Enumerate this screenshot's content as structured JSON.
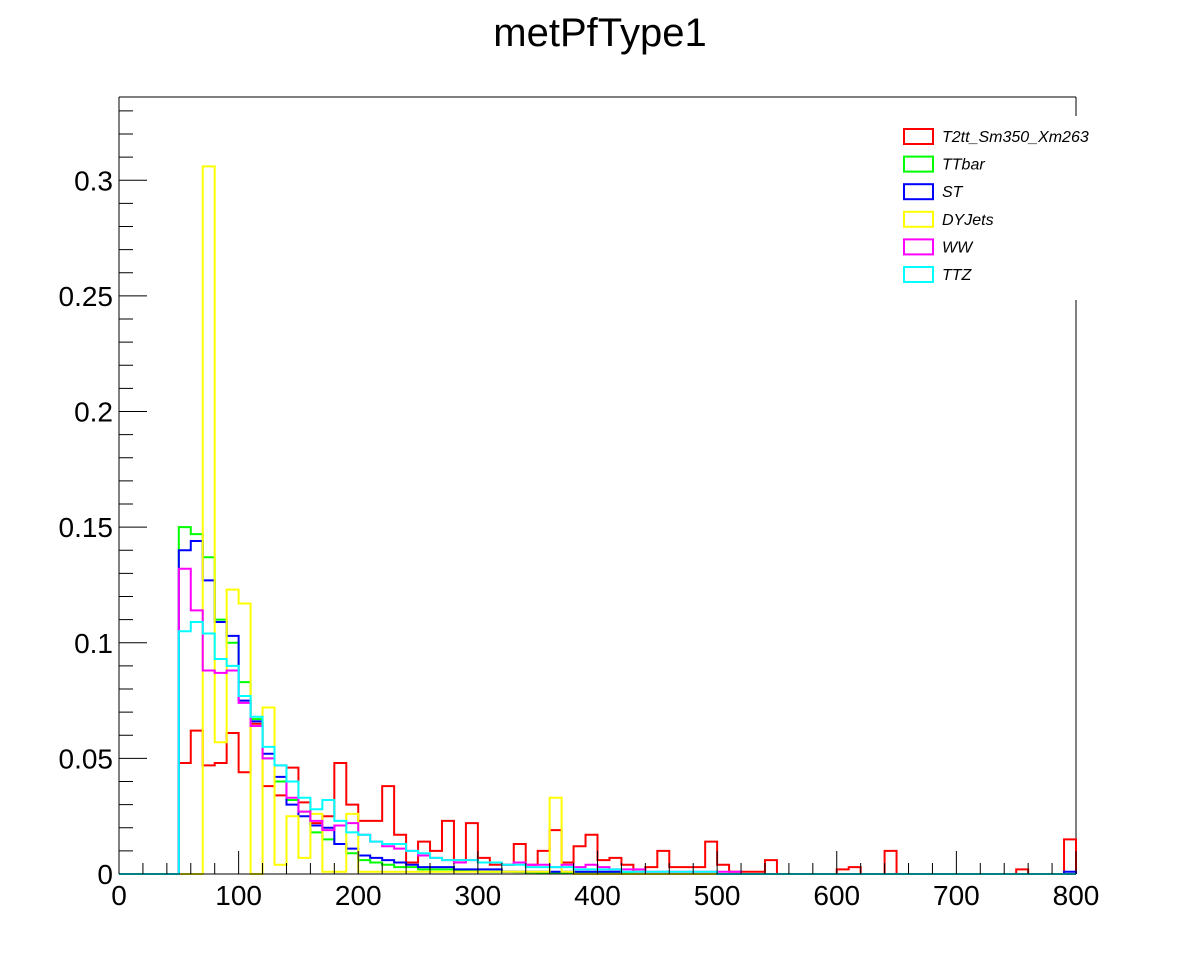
{
  "chart_data": {
    "type": "histogram",
    "title": "metPfType1",
    "xlabel": "",
    "ylabel": "",
    "xlim": [
      0,
      800
    ],
    "ylim": [
      0,
      0.336
    ],
    "x_ticks": [
      "0",
      "100",
      "200",
      "300",
      "400",
      "500",
      "600",
      "700",
      "800"
    ],
    "y_ticks": [
      "0",
      "0.05",
      "0.1",
      "0.15",
      "0.2",
      "0.25",
      "0.3"
    ],
    "y_tick_values": [
      0,
      0.05,
      0.1,
      0.15,
      0.2,
      0.25,
      0.3
    ],
    "bin_width": 10,
    "grid": false,
    "legend_position": "top-right",
    "series": [
      {
        "name": "T2tt_Sm350_Xm263",
        "color": "#ff0000",
        "values": [
          0,
          0,
          0,
          0,
          0,
          0.048,
          0.062,
          0.047,
          0.048,
          0.061,
          0.044,
          0.065,
          0.038,
          0.034,
          0.046,
          0.031,
          0.022,
          0.025,
          0.048,
          0.03,
          0.023,
          0.023,
          0.038,
          0.017,
          0.005,
          0.014,
          0.01,
          0.023,
          0.006,
          0.022,
          0.007,
          0.004,
          0.004,
          0.013,
          0.004,
          0.01,
          0.019,
          0.005,
          0.012,
          0.017,
          0.006,
          0.007,
          0.004,
          0.001,
          0.003,
          0.01,
          0.003,
          0.003,
          0.003,
          0.014,
          0.004,
          0.001,
          0.001,
          0.001,
          0.006,
          0,
          0,
          0,
          0,
          0,
          0.002,
          0.003,
          0,
          0,
          0.01,
          0,
          0,
          0,
          0,
          0,
          0,
          0,
          0,
          0,
          0,
          0.002,
          0,
          0,
          0,
          0.015
        ]
      },
      {
        "name": "TTbar",
        "color": "#00ff00",
        "values": [
          0,
          0,
          0,
          0,
          0,
          0.15,
          0.147,
          0.137,
          0.11,
          0.1,
          0.083,
          0.067,
          0.05,
          0.04,
          0.032,
          0.027,
          0.018,
          0.015,
          0.013,
          0.009,
          0.006,
          0.005,
          0.004,
          0.003,
          0.003,
          0.002,
          0.002,
          0.002,
          0.0015,
          0.0012,
          0.001,
          0.001,
          0.001,
          0.0008,
          0.0007,
          0.0006,
          0.0005,
          0.0004,
          0.0004,
          0.0003,
          0.0003,
          0.0002,
          0.0002,
          0,
          0,
          0,
          0,
          0,
          0,
          0,
          0,
          0,
          0,
          0,
          0,
          0,
          0,
          0,
          0,
          0,
          0,
          0,
          0,
          0,
          0,
          0,
          0,
          0,
          0,
          0,
          0,
          0,
          0,
          0,
          0,
          0,
          0,
          0,
          0,
          0
        ]
      },
      {
        "name": "ST",
        "color": "#0000ff",
        "values": [
          0,
          0,
          0,
          0,
          0,
          0.14,
          0.144,
          0.127,
          0.109,
          0.103,
          0.075,
          0.066,
          0.052,
          0.042,
          0.03,
          0.025,
          0.021,
          0.02,
          0.013,
          0.011,
          0.008,
          0.007,
          0.006,
          0.005,
          0.004,
          0.003,
          0.003,
          0.003,
          0.002,
          0.002,
          0.002,
          0.002,
          0.001,
          0.001,
          0.001,
          0.001,
          0.001,
          0.001,
          0.001,
          0.001,
          0.001,
          0.001,
          0,
          0,
          0,
          0,
          0,
          0,
          0,
          0,
          0,
          0,
          0,
          0,
          0,
          0,
          0,
          0,
          0,
          0,
          0,
          0,
          0,
          0,
          0,
          0,
          0,
          0,
          0,
          0,
          0,
          0,
          0,
          0,
          0,
          0,
          0,
          0,
          0,
          0.001
        ]
      },
      {
        "name": "DYJets",
        "color": "#ffff00",
        "values": [
          0,
          0,
          0,
          0,
          0,
          0,
          0,
          0.306,
          0.057,
          0.123,
          0.117,
          0,
          0.072,
          0.004,
          0.025,
          0.007,
          0.026,
          0.001,
          0.001,
          0.026,
          0.001,
          0.001,
          0.001,
          0.001,
          0.001,
          0.001,
          0.001,
          0.001,
          0.001,
          0.001,
          0.001,
          0.001,
          0.001,
          0.001,
          0.001,
          0.001,
          0.033,
          0.001,
          0,
          0,
          0,
          0,
          0,
          0,
          0,
          0,
          0,
          0,
          0,
          0,
          0,
          0,
          0,
          0,
          0,
          0,
          0,
          0,
          0,
          0,
          0,
          0,
          0,
          0,
          0,
          0,
          0,
          0,
          0,
          0,
          0,
          0,
          0,
          0,
          0,
          0,
          0,
          0,
          0,
          0
        ]
      },
      {
        "name": "WW",
        "color": "#ff00ff",
        "values": [
          0,
          0,
          0,
          0,
          0,
          0.132,
          0.114,
          0.088,
          0.087,
          0.088,
          0.074,
          0.064,
          0.05,
          0.047,
          0.033,
          0.027,
          0.023,
          0.019,
          0.021,
          0.022,
          0.017,
          0.014,
          0.012,
          0.011,
          0.01,
          0.008,
          0.007,
          0.006,
          0.005,
          0.006,
          0.005,
          0.005,
          0.004,
          0.005,
          0.004,
          0.004,
          0.003,
          0.004,
          0.003,
          0.004,
          0.003,
          0.002,
          0.002,
          0.002,
          0.001,
          0.001,
          0.001,
          0.001,
          0.001,
          0.001,
          0.001,
          0.001,
          0,
          0,
          0,
          0,
          0,
          0,
          0,
          0,
          0,
          0,
          0,
          0,
          0,
          0,
          0,
          0,
          0,
          0,
          0,
          0,
          0,
          0,
          0,
          0,
          0,
          0,
          0,
          0
        ]
      },
      {
        "name": "TTZ",
        "color": "#00ffff",
        "values": [
          0,
          0,
          0,
          0,
          0,
          0.105,
          0.109,
          0.104,
          0.093,
          0.09,
          0.077,
          0.068,
          0.055,
          0.047,
          0.04,
          0.033,
          0.028,
          0.032,
          0.023,
          0.018,
          0.017,
          0.014,
          0.013,
          0.013,
          0.01,
          0.009,
          0.007,
          0.006,
          0.006,
          0.006,
          0.005,
          0.005,
          0.004,
          0.004,
          0.003,
          0.003,
          0.003,
          0.003,
          0.002,
          0.002,
          0.002,
          0.002,
          0.001,
          0.001,
          0.001,
          0.001,
          0.001,
          0.001,
          0.001,
          0.001,
          0,
          0,
          0,
          0,
          0,
          0,
          0,
          0,
          0,
          0,
          0,
          0,
          0,
          0,
          0,
          0,
          0,
          0,
          0,
          0,
          0,
          0,
          0,
          0,
          0,
          0,
          0,
          0,
          0,
          0
        ]
      }
    ]
  }
}
